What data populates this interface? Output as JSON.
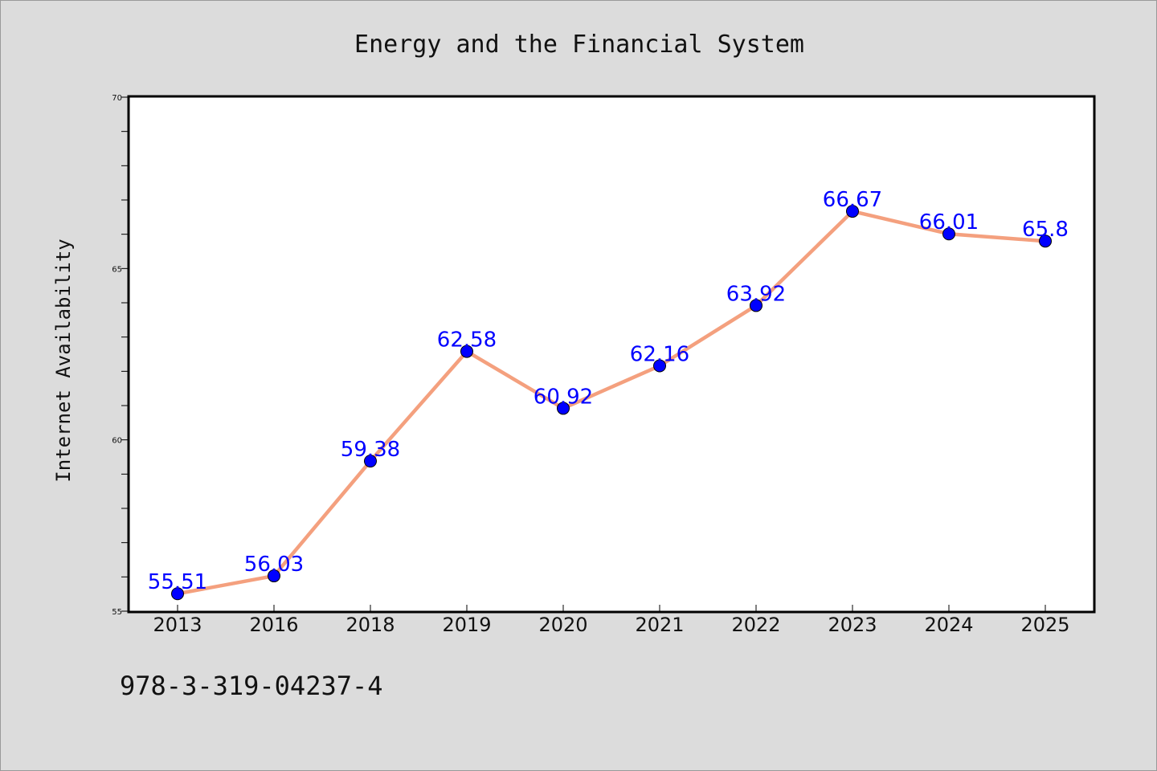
{
  "colors": {
    "background": "#dcdcdc",
    "plot_background": "#ffffff",
    "line": "#f4a07e",
    "marker": "#0000ff",
    "data_label": "#0000ff"
  },
  "footer": {
    "isbn": "978-3-319-04237-4"
  },
  "chart_data": {
    "type": "line",
    "title": "Energy and the Financial System",
    "xlabel": "",
    "ylabel": "Internet Availability",
    "categories": [
      "2013",
      "2016",
      "2018",
      "2019",
      "2020",
      "2021",
      "2022",
      "2023",
      "2024",
      "2025"
    ],
    "series": [
      {
        "values": [
          55.51,
          56.03,
          59.38,
          62.58,
          60.92,
          62.16,
          63.92,
          66.67,
          66.01,
          65.8
        ],
        "labels": [
          "55.51",
          "56.03",
          "59.38",
          "62.58",
          "60.92",
          "62.16",
          "63.92",
          "66.67",
          "66.01",
          "65.8"
        ]
      }
    ],
    "ylim": [
      55,
      70
    ],
    "yticks": [
      55,
      60,
      65,
      70
    ],
    "ytick_labels": [
      "55",
      "60",
      "65",
      "70"
    ],
    "y_minor_step": 1,
    "grid": false,
    "legend": "none",
    "marker": "circle"
  }
}
